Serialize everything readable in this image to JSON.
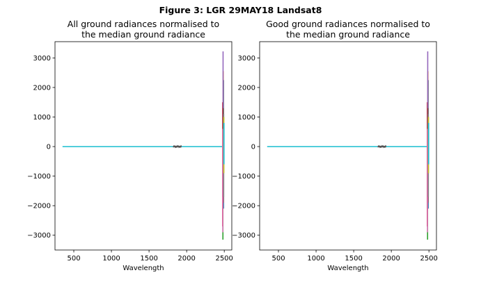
{
  "figure": {
    "suptitle": "Figure 3: LGR 29MAY18  Landsat8"
  },
  "chart_data": [
    {
      "type": "line",
      "title_line1": "All ground radiances normalised to",
      "title_line2": "the median ground radiance",
      "xlabel": "Wavelength",
      "ylabel": "",
      "xlim": [
        250,
        2600
      ],
      "ylim": [
        -3500,
        3550
      ],
      "xticks": [
        500,
        1000,
        1500,
        2000,
        2500
      ],
      "yticks": [
        -3000,
        -2000,
        -1000,
        0,
        1000,
        2000,
        3000
      ],
      "xtick_labels": [
        "500",
        "1000",
        "1500",
        "2000",
        "2500"
      ],
      "ytick_labels": [
        "−3000",
        "−2000",
        "−1000",
        "0",
        "1000",
        "2000",
        "3000"
      ],
      "flat_segment": {
        "x": [
          350,
          2475
        ],
        "y": 0
      },
      "noise_region": {
        "x": [
          1820,
          1930
        ],
        "amplitude": 40
      },
      "series": [
        {
          "color": "#1f77b4",
          "x": 2490,
          "ymin": -2100,
          "ymax": 2250
        },
        {
          "color": "#ff7f0e",
          "x": 2486,
          "ymin": -1200,
          "ymax": 2550
        },
        {
          "color": "#2ca02c",
          "x": 2482,
          "ymin": -3150,
          "ymax": 900
        },
        {
          "color": "#d62728",
          "x": 2478,
          "ymin": -2700,
          "ymax": 1500
        },
        {
          "color": "#9467bd",
          "x": 2484,
          "ymin": -1500,
          "ymax": 3220
        },
        {
          "color": "#8c564b",
          "x": 2488,
          "ymin": -1900,
          "ymax": 1300
        },
        {
          "color": "#e377c2",
          "x": 2480,
          "ymin": -2900,
          "ymax": 600
        },
        {
          "color": "#7f7f7f",
          "x": 2492,
          "ymin": -1700,
          "ymax": 1100
        },
        {
          "color": "#bcbd22",
          "x": 2494,
          "ymin": -900,
          "ymax": 1000
        },
        {
          "color": "#17becf",
          "x": 2496,
          "ymin": -600,
          "ymax": 800
        }
      ]
    },
    {
      "type": "line",
      "title_line1": "Good ground radiances normalised to",
      "title_line2": "the median ground radiance",
      "xlabel": "Wavelength",
      "ylabel": "",
      "xlim": [
        250,
        2600
      ],
      "ylim": [
        -3500,
        3550
      ],
      "xticks": [
        500,
        1000,
        1500,
        2000,
        2500
      ],
      "yticks": [
        -3000,
        -2000,
        -1000,
        0,
        1000,
        2000,
        3000
      ],
      "xtick_labels": [
        "500",
        "1000",
        "1500",
        "2000",
        "2500"
      ],
      "ytick_labels": [
        "−3000",
        "−2000",
        "−1000",
        "0",
        "1000",
        "2000",
        "3000"
      ],
      "flat_segment": {
        "x": [
          350,
          2475
        ],
        "y": 0
      },
      "noise_region": {
        "x": [
          1820,
          1930
        ],
        "amplitude": 40
      },
      "series": [
        {
          "color": "#1f77b4",
          "x": 2490,
          "ymin": -2100,
          "ymax": 2250
        },
        {
          "color": "#ff7f0e",
          "x": 2486,
          "ymin": -1200,
          "ymax": 2550
        },
        {
          "color": "#2ca02c",
          "x": 2482,
          "ymin": -3150,
          "ymax": 900
        },
        {
          "color": "#d62728",
          "x": 2478,
          "ymin": -2700,
          "ymax": 1500
        },
        {
          "color": "#9467bd",
          "x": 2484,
          "ymin": -1500,
          "ymax": 3220
        },
        {
          "color": "#8c564b",
          "x": 2488,
          "ymin": -1900,
          "ymax": 1300
        },
        {
          "color": "#e377c2",
          "x": 2480,
          "ymin": -2900,
          "ymax": 600
        },
        {
          "color": "#7f7f7f",
          "x": 2492,
          "ymin": -1700,
          "ymax": 1100
        },
        {
          "color": "#bcbd22",
          "x": 2494,
          "ymin": -900,
          "ymax": 1000
        },
        {
          "color": "#17becf",
          "x": 2496,
          "ymin": -600,
          "ymax": 800
        }
      ]
    }
  ]
}
